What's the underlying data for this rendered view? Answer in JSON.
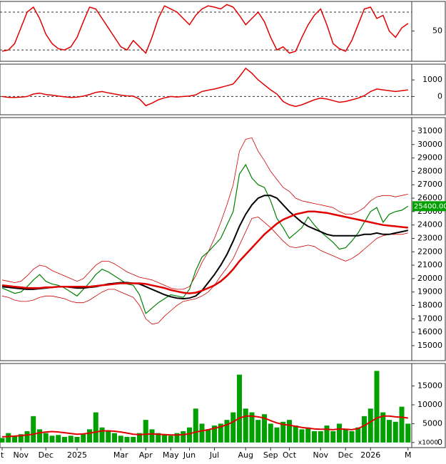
{
  "chart_data": [
    {
      "type": "line",
      "ylim": [
        2,
        97
      ],
      "yticks": [
        50
      ],
      "levels": [
        20,
        80
      ],
      "series": [
        {
          "color": "#e00000",
          "values": [
            18,
            20,
            30,
            55,
            80,
            88,
            70,
            45,
            30,
            22,
            20,
            25,
            40,
            65,
            88,
            85,
            70,
            55,
            40,
            25,
            20,
            35,
            25,
            15,
            40,
            70,
            90,
            85,
            80,
            70,
            60,
            75,
            85,
            90,
            88,
            85,
            92,
            88,
            75,
            60,
            70,
            80,
            65,
            40,
            20,
            25,
            15,
            18,
            40,
            60,
            75,
            85,
            60,
            30,
            22,
            18,
            35,
            60,
            85,
            88,
            70,
            75,
            50,
            40,
            55,
            62
          ]
        }
      ]
    },
    {
      "type": "line",
      "ylim": [
        -1100,
        1950
      ],
      "yticks": [
        0,
        1000
      ],
      "levels": [
        0
      ],
      "series": [
        {
          "color": "#e00000",
          "values": [
            0,
            -50,
            -60,
            -40,
            0,
            150,
            200,
            120,
            80,
            30,
            -20,
            -60,
            -40,
            20,
            120,
            250,
            300,
            220,
            150,
            80,
            40,
            20,
            -150,
            -550,
            -400,
            -200,
            -80,
            0,
            -30,
            0,
            30,
            100,
            300,
            380,
            450,
            550,
            650,
            750,
            1200,
            1700,
            1400,
            1000,
            700,
            400,
            150,
            -300,
            -500,
            -600,
            -500,
            -350,
            -200,
            -100,
            -150,
            -250,
            -350,
            -300,
            -200,
            -100,
            50,
            300,
            450,
            400,
            350,
            300,
            350,
            400
          ]
        }
      ]
    },
    {
      "type": "line",
      "ylim": [
        13880,
        32010
      ],
      "yticks": [
        15000,
        16000,
        17000,
        18000,
        19000,
        20000,
        21000,
        22000,
        23000,
        24000,
        25000,
        26000,
        27000,
        28000,
        29000,
        30000,
        31000
      ],
      "current_price": {
        "value": 25400,
        "label": "25400.00"
      },
      "series": [
        {
          "color": "#cc0000",
          "width": 0.8,
          "values": [
            19900,
            19800,
            19700,
            19800,
            20200,
            20700,
            21000,
            20900,
            20600,
            20400,
            20200,
            20000,
            19800,
            20000,
            20500,
            21000,
            21300,
            21300,
            21100,
            20800,
            20500,
            20300,
            20100,
            20000,
            19900,
            19700,
            19500,
            19300,
            19200,
            19200,
            19400,
            20200,
            21200,
            22000,
            23000,
            24200,
            25500,
            27000,
            29500,
            30400,
            30500,
            29500,
            28800,
            28000,
            27400,
            26800,
            26500,
            26000,
            25800,
            25700,
            25600,
            25500,
            25400,
            25300,
            25000,
            24800,
            24800,
            25000,
            25300,
            25800,
            26100,
            26200,
            26200,
            26100,
            26200,
            26300
          ]
        },
        {
          "color": "#cc0000",
          "width": 0.8,
          "values": [
            18700,
            18600,
            18400,
            18300,
            18300,
            18400,
            18600,
            18700,
            18700,
            18600,
            18500,
            18300,
            18200,
            18200,
            18400,
            18700,
            19000,
            19200,
            19200,
            19000,
            18800,
            18600,
            18000,
            17000,
            16600,
            16700,
            17200,
            17600,
            18000,
            18300,
            18400,
            18500,
            18700,
            19000,
            19500,
            20200,
            20800,
            21500,
            22500,
            23500,
            24500,
            24600,
            24200,
            23800,
            23300,
            22800,
            22400,
            22300,
            22400,
            22500,
            22400,
            22100,
            21900,
            21700,
            21500,
            21300,
            21500,
            21800,
            22200,
            22600,
            23000,
            23200,
            23300,
            23300,
            23300,
            23400
          ]
        },
        {
          "color": "#008000",
          "width": 1.2,
          "values": [
            19300,
            19100,
            18900,
            19000,
            19400,
            19900,
            20300,
            19800,
            19600,
            19500,
            19300,
            19000,
            18700,
            19200,
            19700,
            20300,
            20700,
            20500,
            20200,
            19900,
            19600,
            19500,
            18800,
            17400,
            17800,
            18200,
            18500,
            18800,
            18700,
            18600,
            19200,
            20600,
            21600,
            22000,
            22500,
            23000,
            24000,
            25000,
            27800,
            28500,
            27500,
            27000,
            26800,
            25800,
            24500,
            23800,
            23000,
            23400,
            23800,
            24600,
            24000,
            23500,
            23100,
            22700,
            22200,
            22300,
            22800,
            23400,
            24200,
            25000,
            25300,
            24200,
            24800,
            25000,
            25100,
            25400
          ]
        },
        {
          "color": "#000000",
          "width": 2,
          "values": [
            19400,
            19350,
            19300,
            19250,
            19200,
            19200,
            19250,
            19300,
            19350,
            19400,
            19400,
            19350,
            19300,
            19300,
            19350,
            19400,
            19500,
            19600,
            19650,
            19700,
            19700,
            19650,
            19600,
            19400,
            19200,
            19000,
            18800,
            18650,
            18550,
            18500,
            18550,
            18700,
            19100,
            19700,
            20300,
            21000,
            21800,
            22800,
            23900,
            24800,
            25500,
            26000,
            26200,
            26200,
            26000,
            25500,
            25000,
            24600,
            24200,
            23900,
            23700,
            23500,
            23300,
            23200,
            23200,
            23200,
            23200,
            23200,
            23300,
            23300,
            23400,
            23300,
            23300,
            23400,
            23500,
            23600
          ]
        },
        {
          "color": "#e00000",
          "width": 2.5,
          "values": [
            19500,
            19450,
            19400,
            19350,
            19300,
            19300,
            19300,
            19350,
            19350,
            19400,
            19400,
            19400,
            19400,
            19400,
            19400,
            19450,
            19500,
            19550,
            19600,
            19650,
            19650,
            19650,
            19650,
            19600,
            19500,
            19400,
            19300,
            19150,
            19050,
            18950,
            18900,
            18950,
            19100,
            19300,
            19500,
            19800,
            20200,
            20700,
            21300,
            21800,
            22300,
            22800,
            23300,
            23700,
            24100,
            24400,
            24600,
            24800,
            24900,
            25000,
            25000,
            24950,
            24900,
            24800,
            24700,
            24600,
            24500,
            24400,
            24300,
            24200,
            24100,
            24000,
            23950,
            23900,
            23850,
            23800
          ]
        }
      ]
    },
    {
      "type": "bar",
      "ylim": [
        -1350,
        20960
      ],
      "yticks": [
        0,
        5000,
        10000,
        15000
      ],
      "unit_label": "x1000",
      "color": "#00a000",
      "categories": [
        "t",
        null,
        null,
        "Nov",
        null,
        null,
        null,
        "Dec",
        null,
        null,
        null,
        null,
        "2025",
        null,
        null,
        null,
        null,
        null,
        null,
        "Mar",
        null,
        null,
        null,
        "Apr",
        null,
        null,
        null,
        "May",
        null,
        null,
        "Jun",
        null,
        null,
        null,
        "Jul",
        null,
        null,
        null,
        null,
        "Aug",
        null,
        null,
        null,
        "Sep",
        null,
        null,
        "Oct",
        null,
        null,
        null,
        null,
        "Nov",
        null,
        null,
        null,
        "Dec",
        null,
        null,
        null,
        "2026",
        null,
        null,
        null,
        null,
        null,
        "M"
      ],
      "values": [
        1200,
        2500,
        1800,
        2200,
        3000,
        7000,
        3500,
        2500,
        1800,
        2000,
        1500,
        1800,
        1500,
        2200,
        3500,
        8000,
        4000,
        3000,
        2500,
        1800,
        1500,
        1500,
        2500,
        6000,
        3500,
        2500,
        2000,
        1800,
        2500,
        3000,
        4000,
        9000,
        5000,
        3500,
        4500,
        5000,
        6000,
        8000,
        18000,
        9000,
        8000,
        6000,
        7500,
        5000,
        4000,
        5500,
        6000,
        4500,
        3500,
        4000,
        3000,
        3000,
        4500,
        3000,
        5000,
        3500,
        3000,
        4000,
        7000,
        9000,
        19000,
        8000,
        6000,
        5500,
        9500,
        5000
      ],
      "series": [
        {
          "color": "#e00000",
          "width": 2,
          "values": [
            1500,
            1600,
            1700,
            1800,
            2000,
            2200,
            2600,
            2800,
            2900,
            2800,
            2600,
            2400,
            2200,
            2300,
            2500,
            2800,
            3100,
            3100,
            3000,
            2800,
            2500,
            2200,
            2100,
            2200,
            2300,
            2200,
            2100,
            2000,
            2000,
            2100,
            2300,
            2800,
            3100,
            3400,
            3800,
            4200,
            4700,
            5500,
            6500,
            7000,
            7000,
            6800,
            6500,
            5800,
            5200,
            4800,
            4600,
            4300,
            4000,
            3800,
            3600,
            3500,
            3500,
            3400,
            3600,
            3500,
            3400,
            3700,
            4500,
            5500,
            6500,
            7000,
            7000,
            6800,
            6700,
            6500
          ]
        }
      ]
    }
  ]
}
